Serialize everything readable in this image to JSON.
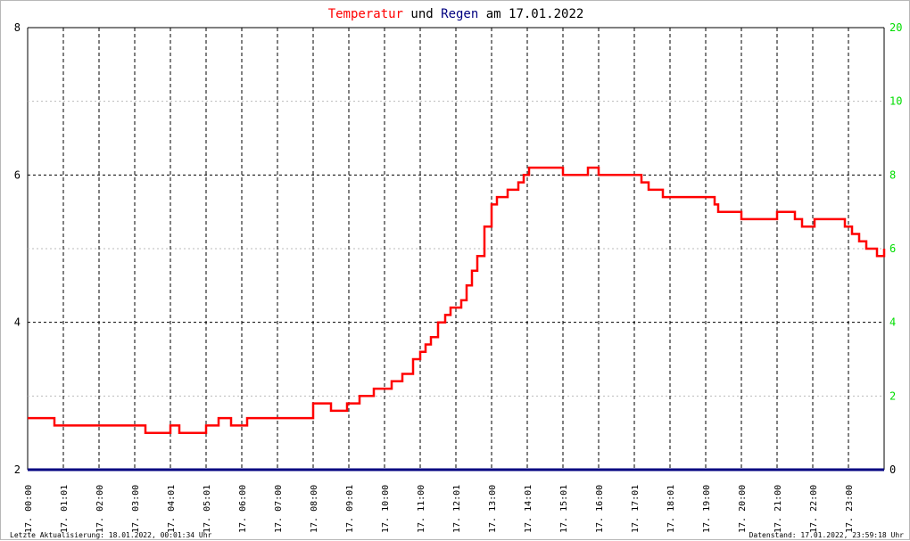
{
  "title": {
    "part1": "Temperatur",
    "part2": " und ",
    "part3": "Regen",
    "part4": " am 17.01.2022"
  },
  "colors": {
    "temperature": "#ff0000",
    "rain": "#000080",
    "title_temperature": "#ff0000",
    "title_rain": "#000080",
    "title_other": "#000000",
    "right_axis": "#00dd00",
    "grid_major": "#000000",
    "grid_minor": "#bbbbbb"
  },
  "footer": {
    "left": "Letzte Aktualisierung: 18.01.2022, 00:01:34 Uhr",
    "right": "Datenstand: 17.01.2022, 23:59:18 Uhr"
  },
  "chart_data": {
    "type": "line",
    "x_unit": "hours since 17.01.2022 00:00",
    "xlim": [
      0,
      24
    ],
    "x_tick_labels": [
      "17. 00:00",
      "17. 01:01",
      "17. 02:00",
      "17. 03:00",
      "17. 04:01",
      "17. 05:01",
      "17. 06:00",
      "17. 07:00",
      "17. 08:00",
      "17. 09:01",
      "17. 10:00",
      "17. 11:00",
      "17. 12:01",
      "17. 13:00",
      "17. 14:01",
      "17. 15:01",
      "17. 16:00",
      "17. 17:01",
      "17. 18:01",
      "17. 19:00",
      "17. 20:00",
      "17. 21:00",
      "17. 22:00",
      "17. 23:00"
    ],
    "y_left": {
      "ticks": [
        "2",
        "4",
        "6",
        "8"
      ],
      "ylim": [
        2,
        8
      ]
    },
    "y_right": {
      "ticks": [
        "0",
        "2",
        "4",
        "6",
        "8",
        "10",
        "20"
      ],
      "ylim": [
        0,
        20
      ]
    },
    "grid": true,
    "series": [
      {
        "name": "Temperatur",
        "axis": "left",
        "x": [
          0,
          0.2,
          0.7,
          0.75,
          3.25,
          3.3,
          3.9,
          4.0,
          4.2,
          4.25,
          4.9,
          5.0,
          5.2,
          5.35,
          5.7,
          5.75,
          6.1,
          6.15,
          6.5,
          6.75,
          7.0,
          7.5,
          8.0,
          8.45,
          8.5,
          8.9,
          8.95,
          9.2,
          9.3,
          9.6,
          9.7,
          10.0,
          10.2,
          10.3,
          10.5,
          10.7,
          10.8,
          11.0,
          11.15,
          11.3,
          11.5,
          11.7,
          11.85,
          12.0,
          12.15,
          12.3,
          12.45,
          12.6,
          12.8,
          13.0,
          13.15,
          13.3,
          13.45,
          13.6,
          13.75,
          13.9,
          14.05,
          14.3,
          14.6,
          15.0,
          15.5,
          15.7,
          16.0,
          16.5,
          17.0,
          17.2,
          17.4,
          17.65,
          17.8,
          18.0,
          18.5,
          19.0,
          19.25,
          19.35,
          19.5,
          19.9,
          20.0,
          20.5,
          20.9,
          21.0,
          21.4,
          21.5,
          21.7,
          22.0,
          22.05,
          22.5,
          22.85,
          22.9,
          23.1,
          23.3,
          23.5,
          23.8,
          23.95,
          24.0
        ],
        "values": [
          2.7,
          2.7,
          2.7,
          2.6,
          2.6,
          2.5,
          2.5,
          2.6,
          2.6,
          2.5,
          2.5,
          2.6,
          2.6,
          2.7,
          2.6,
          2.6,
          2.6,
          2.7,
          2.7,
          2.7,
          2.7,
          2.7,
          2.9,
          2.9,
          2.8,
          2.8,
          2.9,
          2.9,
          3.0,
          3.0,
          3.1,
          3.1,
          3.2,
          3.2,
          3.3,
          3.3,
          3.5,
          3.6,
          3.7,
          3.8,
          4.0,
          4.1,
          4.2,
          4.2,
          4.3,
          4.5,
          4.7,
          4.9,
          5.3,
          5.6,
          5.7,
          5.7,
          5.8,
          5.8,
          5.9,
          6.0,
          6.1,
          6.1,
          6.1,
          6.0,
          6.0,
          6.1,
          6.0,
          6.0,
          6.0,
          5.9,
          5.8,
          5.8,
          5.7,
          5.7,
          5.7,
          5.7,
          5.6,
          5.5,
          5.5,
          5.5,
          5.4,
          5.4,
          5.4,
          5.5,
          5.5,
          5.4,
          5.3,
          5.3,
          5.4,
          5.4,
          5.4,
          5.3,
          5.2,
          5.1,
          5.0,
          4.9,
          4.9,
          5.0
        ]
      },
      {
        "name": "Regen",
        "axis": "right",
        "x": [
          0,
          24
        ],
        "values": [
          0,
          0
        ]
      }
    ]
  }
}
